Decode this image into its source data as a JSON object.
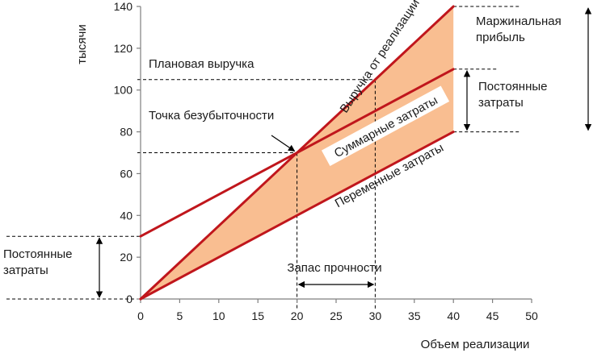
{
  "chart_data": {
    "type": "line",
    "ylabel": "тысячи",
    "xlabel": "Объем реализации",
    "xlim": [
      0,
      50
    ],
    "ylim": [
      0,
      140
    ],
    "x_ticks": [
      0,
      5,
      10,
      15,
      20,
      25,
      30,
      35,
      40,
      45,
      50
    ],
    "y_ticks": [
      0,
      20,
      40,
      60,
      80,
      100,
      120,
      140
    ],
    "grid": false,
    "series": [
      {
        "name": "Выручка от реализации",
        "x": [
          0,
          40
        ],
        "values": [
          0,
          140
        ],
        "color": "#c0161c"
      },
      {
        "name": "Суммарные затраты",
        "x": [
          0,
          40
        ],
        "values": [
          30,
          110
        ],
        "color": "#c0161c"
      },
      {
        "name": "Переменные затраты",
        "x": [
          0,
          40
        ],
        "values": [
          0,
          80
        ],
        "color": "#c0161c"
      }
    ],
    "fill_color": "#f9be91",
    "annotations": {
      "planned_revenue": {
        "text": "Плановая выручка",
        "y": 105
      },
      "break_even": {
        "text": "Точка безубыточности",
        "x": 20,
        "y": 70
      },
      "safety_margin": {
        "text": "Запас прочности",
        "x_from": 20,
        "x_to": 30
      },
      "marginal_profit": {
        "text": "Маржинальная прибыль",
        "y_from": 80,
        "y_to": 140
      },
      "fixed_costs_right": {
        "text": "Постоянные затраты",
        "y_from": 80,
        "y_to": 110
      },
      "fixed_costs_left": {
        "text": "Постоянные затраты",
        "y_from": 0,
        "y_to": 30
      }
    }
  }
}
